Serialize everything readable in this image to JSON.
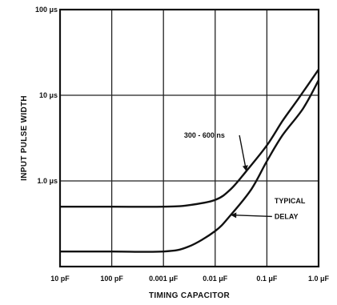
{
  "chart_data": {
    "type": "line",
    "title": "",
    "xlabel": "TIMING CAPACITOR",
    "ylabel": "INPUT PULSE WIDTH",
    "x_scale": "log",
    "y_scale": "log",
    "xlim": [
      1e-11,
      1e-06
    ],
    "ylim": [
      1e-07,
      0.0001
    ],
    "grid": true,
    "x_ticks": [
      {
        "value": 1e-11,
        "label": "10 pF"
      },
      {
        "value": 1e-10,
        "label": "100 pF"
      },
      {
        "value": 1e-09,
        "label": "0.001 μF"
      },
      {
        "value": 1e-08,
        "label": "0.01 μF"
      },
      {
        "value": 1e-07,
        "label": "0.1 μF"
      },
      {
        "value": 1e-06,
        "label": "1.0 μF"
      }
    ],
    "y_ticks": [
      {
        "value": 0.0001,
        "label": "100 μs"
      },
      {
        "value": 1e-05,
        "label": "10 μs"
      },
      {
        "value": 1e-06,
        "label": "1.0 μs"
      }
    ],
    "series": [
      {
        "name": "300 - 600 ns",
        "x": [
          1e-11,
          1e-10,
          1e-09,
          3e-09,
          1e-08,
          2e-08,
          4e-08,
          1e-07,
          2e-07,
          4e-07,
          1e-06
        ],
        "y": [
          5e-07,
          5e-07,
          5e-07,
          5.2e-07,
          6e-07,
          8e-07,
          1.3e-06,
          2.6e-06,
          5e-06,
          9e-06,
          2e-05
        ]
      },
      {
        "name": "TYPICAL DELAY",
        "x": [
          1e-11,
          1e-10,
          1e-09,
          3e-09,
          1e-08,
          2e-08,
          5e-08,
          1e-07,
          2e-07,
          5e-07,
          1e-06
        ],
        "y": [
          1.5e-07,
          1.5e-07,
          1.5e-07,
          1.7e-07,
          2.6e-07,
          4e-07,
          8e-07,
          1.7e-06,
          3.4e-06,
          7e-06,
          1.5e-05
        ]
      }
    ],
    "annotations": [
      {
        "text": "300 - 600 ns",
        "x": 2.5e-09,
        "y": 3.2e-06,
        "arrow_to": [
          4e-08,
          1.3e-06
        ]
      },
      {
        "text": "TYPICAL",
        "x": 1.4e-07,
        "y": 5.5e-07
      },
      {
        "text": "DELAY",
        "x": 1.4e-07,
        "y": 3.6e-07,
        "arrow_to": [
          2e-08,
          4e-07
        ]
      }
    ]
  }
}
